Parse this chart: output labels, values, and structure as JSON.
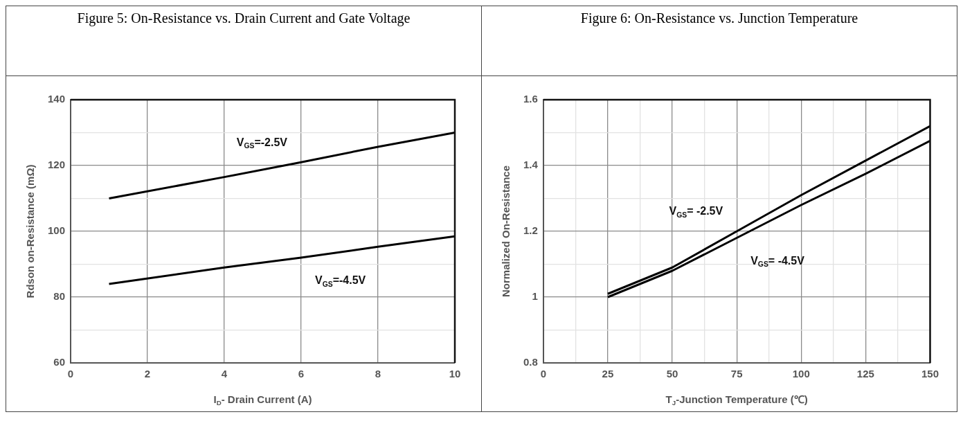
{
  "chart_data": [
    {
      "type": "line",
      "title": "Figure 5: On-Resistance vs. Drain Current and Gate Voltage",
      "xlabel": "I$_{D}$- Drain Current (A)",
      "ylabel": "Rdson on-Resistance (mΩ)",
      "x": [
        1,
        4,
        6,
        8,
        10
      ],
      "series": [
        {
          "name": "V$_{GS}$=-2.5V",
          "color": "#000000",
          "values": [
            110,
            116.5,
            121,
            125.7,
            130
          ]
        },
        {
          "name": "V$_{GS}$=-4.5V",
          "color": "#000000",
          "values": [
            84,
            89,
            92,
            95.3,
            98.5
          ]
        }
      ],
      "xlim": [
        0,
        10
      ],
      "xticks": [
        0,
        2,
        4,
        6,
        8,
        10
      ],
      "ylim": [
        60,
        140
      ],
      "yticks": [
        60,
        {
          "value": 70,
          "label": null
        },
        80,
        {
          "value": 90,
          "label": null
        },
        100,
        {
          "value": 110,
          "label": null
        },
        120,
        {
          "value": 130,
          "label": null
        },
        140
      ],
      "grid": true,
      "line_style": "solid"
    },
    {
      "type": "line",
      "title": "Figure 6: On-Resistance vs. Junction Temperature",
      "xlabel": "T$_{J}$-Junction Temperature (℃)",
      "ylabel": "Normalized On-Resistance",
      "x": [
        25,
        50,
        75,
        100,
        125,
        150
      ],
      "series": [
        {
          "name": "V$_{GS}$= -2.5V",
          "color": "#000000",
          "values": [
            1.01,
            1.09,
            1.2,
            1.31,
            1.415,
            1.52
          ]
        },
        {
          "name": "V$_{GS}$= -4.5V",
          "color": "#000000",
          "values": [
            1.0,
            1.08,
            1.18,
            1.28,
            1.375,
            1.475
          ]
        }
      ],
      "xlim": [
        0,
        150
      ],
      "xticks": [
        0,
        {
          "value": 12.5,
          "label": null
        },
        25,
        {
          "value": 37.5,
          "label": null
        },
        50,
        {
          "value": 62.5,
          "label": null
        },
        75,
        {
          "value": 87.5,
          "label": null
        },
        100,
        {
          "value": 112.5,
          "label": null
        },
        125,
        {
          "value": 137.5,
          "label": null
        },
        150
      ],
      "ylim": [
        0.8,
        1.6
      ],
      "yticks": [
        0.8,
        {
          "value": 0.9,
          "label": null
        },
        1,
        {
          "value": 1.1,
          "label": null
        },
        1.2,
        {
          "value": 1.3,
          "label": null
        },
        1.4,
        {
          "value": 1.5,
          "label": null
        },
        1.6
      ],
      "grid": true,
      "line_style": "solid"
    }
  ]
}
